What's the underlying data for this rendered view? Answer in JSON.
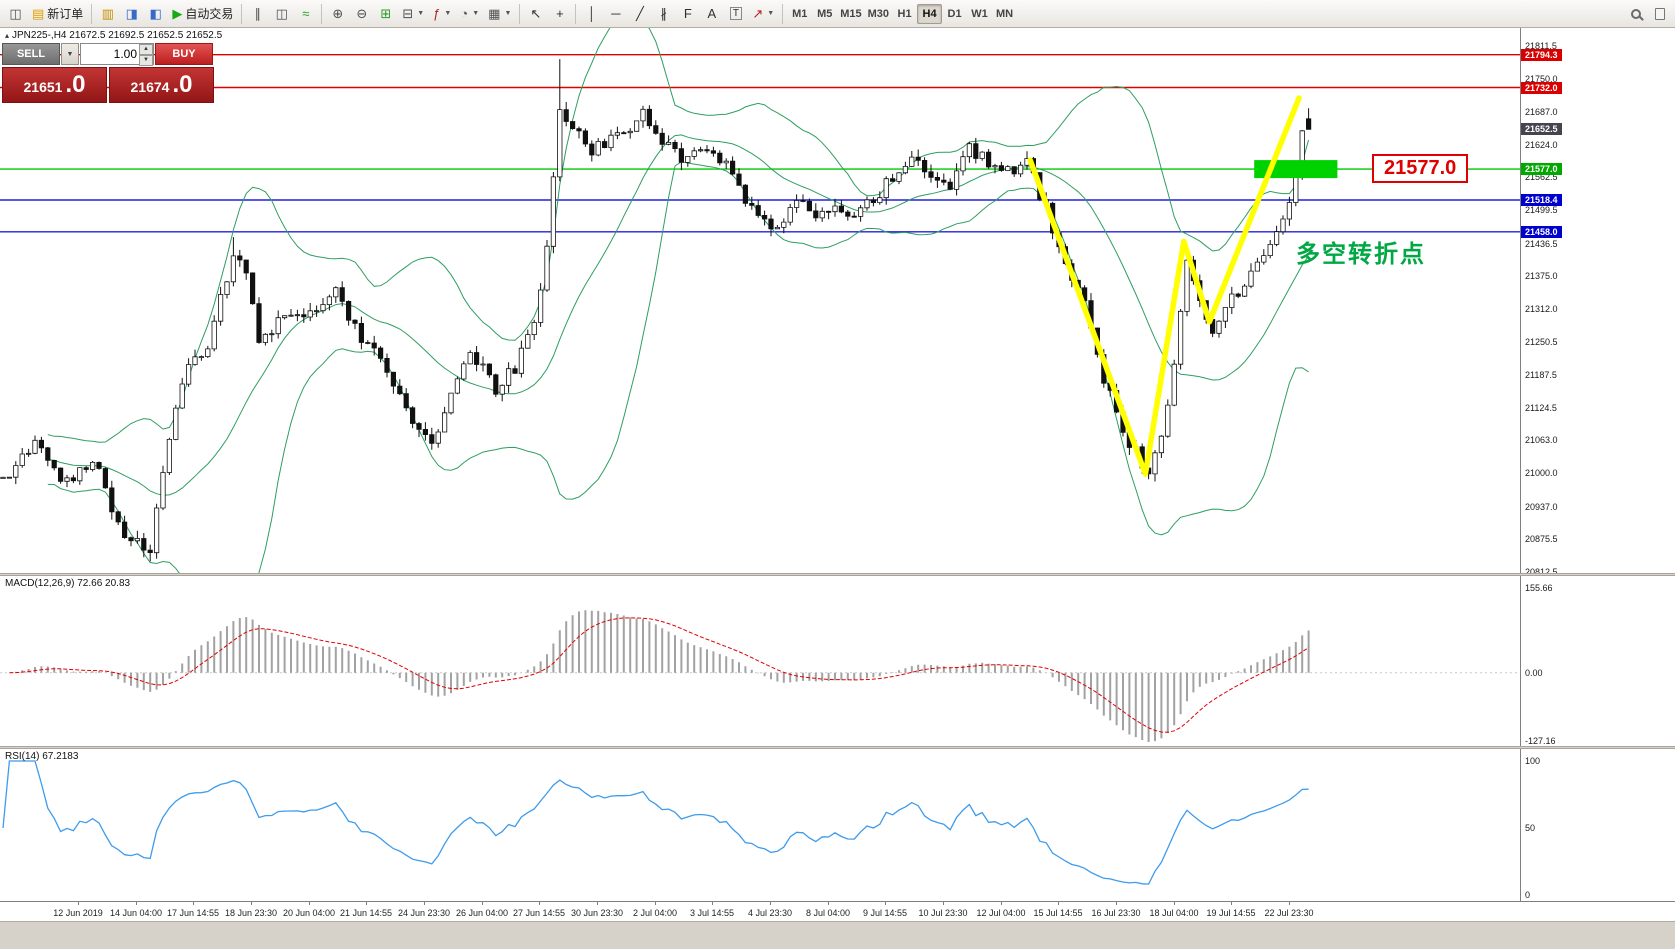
{
  "toolbar": {
    "new_order_label": "新订单",
    "auto_trading_label": "自动交易",
    "timeframes": [
      "M1",
      "M5",
      "M15",
      "M30",
      "H1",
      "H4",
      "D1",
      "W1",
      "MN"
    ],
    "active_timeframe": "H4",
    "items": [
      {
        "t": "icon",
        "n": "new-chart-icon",
        "g": "◫",
        "c": "#505050"
      },
      {
        "t": "text",
        "n": "new-order-button",
        "g": "▤",
        "gc": "#e0a000",
        "label": "新订单"
      },
      {
        "t": "sep"
      },
      {
        "t": "icon",
        "n": "profiles-icon",
        "g": "▥",
        "c": "#c89000"
      },
      {
        "t": "icon",
        "n": "market-watch-icon",
        "g": "◨",
        "c": "#3868c8"
      },
      {
        "t": "icon",
        "n": "navigator-icon",
        "g": "◧",
        "c": "#3868c8"
      },
      {
        "t": "text",
        "n": "auto-trading-button",
        "g": "▶",
        "gc": "#18a818",
        "label": "自动交易"
      },
      {
        "t": "sep"
      },
      {
        "t": "icon",
        "n": "bar-chart-icon",
        "g": "∥",
        "c": "#505050"
      },
      {
        "t": "icon",
        "n": "candlestick-chart-icon",
        "g": "◫",
        "c": "#505050"
      },
      {
        "t": "icon",
        "n": "line-chart-icon",
        "g": "≈",
        "c": "#2a9a2a"
      },
      {
        "t": "sep"
      },
      {
        "t": "icon",
        "n": "zoom-in-icon",
        "g": "⊕",
        "c": "#505050"
      },
      {
        "t": "icon",
        "n": "zoom-out-icon",
        "g": "⊖",
        "c": "#505050"
      },
      {
        "t": "icon",
        "n": "auto-scroll-icon",
        "g": "⊞",
        "c": "#2a9a2a"
      },
      {
        "t": "icon",
        "n": "chart-shift-icon",
        "g": "⊟",
        "c": "#505050",
        "dd": true
      },
      {
        "t": "icon",
        "n": "indicators-icon",
        "g": "ƒ",
        "c": "#b02020",
        "dd": true
      },
      {
        "t": "icon",
        "n": "periods-icon",
        "g": "◔",
        "c": "#505050",
        "dd": true
      },
      {
        "t": "icon",
        "n": "templates-icon",
        "g": "▦",
        "c": "#505050",
        "dd": true
      },
      {
        "t": "sep"
      },
      {
        "t": "icon",
        "n": "cursor-icon",
        "g": "↖",
        "c": "#303030"
      },
      {
        "t": "icon",
        "n": "crosshair-icon",
        "g": "+",
        "c": "#303030"
      },
      {
        "t": "sep"
      },
      {
        "t": "icon",
        "n": "vertical-line-icon",
        "g": "│",
        "c": "#303030"
      },
      {
        "t": "icon",
        "n": "horizontal-line-icon",
        "g": "─",
        "c": "#303030"
      },
      {
        "t": "icon",
        "n": "trendline-icon",
        "g": "╱",
        "c": "#303030"
      },
      {
        "t": "icon",
        "n": "equidistant-channel-icon",
        "g": "∦",
        "c": "#303030"
      },
      {
        "t": "icon",
        "n": "fibonacci-icon",
        "g": "F",
        "c": "#303030"
      },
      {
        "t": "icon",
        "n": "text-icon",
        "g": "A",
        "c": "#303030"
      },
      {
        "t": "icon",
        "n": "text-label-icon",
        "g": "T",
        "c": "#303030",
        "boxed": true
      },
      {
        "t": "icon",
        "n": "arrows-icon",
        "g": "↗",
        "c": "#b02020",
        "dd": true
      },
      {
        "t": "sep"
      },
      {
        "t": "tfgroup"
      },
      {
        "t": "gap"
      },
      {
        "t": "css",
        "n": "search-icon",
        "cls": "icon-magnifier"
      },
      {
        "t": "css",
        "n": "data-window-icon",
        "cls": "icon-page"
      }
    ]
  },
  "chart": {
    "symbol_icon": "▴",
    "symbol_info": "JPN225-,H4  21672.5 21692.5 21652.5 21652.5",
    "trade_panel": {
      "sell_label": "SELL",
      "buy_label": "BUY",
      "volume": "1.00",
      "sell_price_main": "21651",
      "sell_price_big": ".0",
      "buy_price_main": "21674",
      "buy_price_big": ".0"
    },
    "annotation_price": "21577.0",
    "annotation_text": "多空转折点",
    "current_price": "21652.5"
  },
  "price_axis": {
    "plain_labels": [
      "21811.5",
      "21750.0",
      "21687.0",
      "21624.0",
      "21562.5",
      "21499.5",
      "21436.5",
      "21375.0",
      "21312.0",
      "21250.5",
      "21187.5",
      "21124.5",
      "21063.0",
      "21000.0",
      "20937.0",
      "20875.5",
      "20812.5"
    ],
    "tags": [
      {
        "text": "21794.3",
        "price": 21794.3,
        "color": "#d80000"
      },
      {
        "text": "21732.0",
        "price": 21732.0,
        "color": "#d80000"
      },
      {
        "text": "21652.5",
        "price": 21652.5,
        "color": "#45454f"
      },
      {
        "text": "21577.0",
        "price": 21577.0,
        "color": "#00a800"
      },
      {
        "text": "21518.4",
        "price": 21518.4,
        "color": "#0000cd"
      },
      {
        "text": "21458.0",
        "price": 21458.0,
        "color": "#0000cd"
      }
    ]
  },
  "macd": {
    "label": "MACD(12,26,9) 72.66 20.83",
    "scale_top": "155.66",
    "scale_zero": "0.00",
    "scale_bottom": "-127.16"
  },
  "rsi": {
    "label": "RSI(14) 67.2183",
    "scale_top": "100",
    "scale_mid": "50",
    "scale_bottom": "0"
  },
  "time_axis": {
    "labels": [
      "12 Jun 2019",
      "14 Jun 04:00",
      "17 Jun 14:55",
      "18 Jun 23:30",
      "20 Jun 04:00",
      "21 Jun 14:55",
      "24 Jun 23:30",
      "26 Jun 04:00",
      "27 Jun 14:55",
      "30 Jun 23:30",
      "2 Jul 04:00",
      "3 Jul 14:55",
      "4 Jul 23:30",
      "8 Jul 04:00",
      "9 Jul 14:55",
      "10 Jul 23:30",
      "12 Jul 04:00",
      "15 Jul 14:55",
      "16 Jul 23:30",
      "18 Jul 04:00",
      "19 Jul 14:55",
      "22 Jul 23:30"
    ]
  },
  "chart_data": {
    "type": "candlestick",
    "symbol": "JPN225-",
    "timeframe": "H4",
    "ohlc_current": {
      "open": 21672.5,
      "high": 21692.5,
      "low": 21652.5,
      "close": 21652.5
    },
    "bid": "21651.0",
    "ask": "21674.0",
    "y_min": 20800,
    "y_max": 21845,
    "levels": [
      {
        "price": 21794.3,
        "color": "#e00000",
        "style": "solid"
      },
      {
        "price": 21732.0,
        "color": "#e00000",
        "style": "solid"
      },
      {
        "price": 21577.0,
        "color": "#00c800",
        "style": "solid"
      },
      {
        "price": 21518.4,
        "color": "#2020dd",
        "style": "solid"
      },
      {
        "price": 21458.0,
        "color": "#2020dd",
        "style": "solid"
      }
    ],
    "candle_count": 205,
    "price_anchors": [
      [
        0,
        20990
      ],
      [
        5,
        21060
      ],
      [
        10,
        20980
      ],
      [
        14,
        21030
      ],
      [
        18,
        20900
      ],
      [
        23,
        20845
      ],
      [
        25,
        21000
      ],
      [
        28,
        21180
      ],
      [
        32,
        21240
      ],
      [
        36,
        21420
      ],
      [
        38,
        21370
      ],
      [
        40,
        21260
      ],
      [
        44,
        21290
      ],
      [
        48,
        21310
      ],
      [
        52,
        21340
      ],
      [
        56,
        21260
      ],
      [
        60,
        21200
      ],
      [
        64,
        21100
      ],
      [
        67,
        21060
      ],
      [
        70,
        21150
      ],
      [
        73,
        21230
      ],
      [
        77,
        21160
      ],
      [
        80,
        21200
      ],
      [
        83,
        21280
      ],
      [
        85,
        21430
      ],
      [
        87,
        21700
      ],
      [
        89,
        21655
      ],
      [
        92,
        21610
      ],
      [
        95,
        21630
      ],
      [
        98,
        21660
      ],
      [
        100,
        21680
      ],
      [
        103,
        21630
      ],
      [
        106,
        21590
      ],
      [
        109,
        21620
      ],
      [
        112,
        21600
      ],
      [
        115,
        21540
      ],
      [
        118,
        21490
      ],
      [
        121,
        21470
      ],
      [
        124,
        21520
      ],
      [
        127,
        21480
      ],
      [
        130,
        21500
      ],
      [
        133,
        21480
      ],
      [
        136,
        21520
      ],
      [
        139,
        21560
      ],
      [
        142,
        21600
      ],
      [
        145,
        21570
      ],
      [
        148,
        21550
      ],
      [
        151,
        21620
      ],
      [
        154,
        21590
      ],
      [
        157,
        21570
      ],
      [
        160,
        21590
      ],
      [
        163,
        21500
      ],
      [
        166,
        21400
      ],
      [
        169,
        21320
      ],
      [
        172,
        21180
      ],
      [
        175,
        21080
      ],
      [
        178,
        21020
      ],
      [
        179,
        21005
      ],
      [
        181,
        21070
      ],
      [
        183,
        21210
      ],
      [
        185,
        21400
      ],
      [
        187,
        21330
      ],
      [
        189,
        21275
      ],
      [
        191,
        21320
      ],
      [
        194,
        21360
      ],
      [
        197,
        21410
      ],
      [
        200,
        21470
      ],
      [
        202,
        21560
      ],
      [
        203,
        21640
      ],
      [
        204,
        21652.5
      ]
    ],
    "special_candles": {
      "23": {
        "low": 20832
      },
      "36": {
        "high": 21448
      },
      "87": {
        "high": 21786
      },
      "179": {
        "low": 20988
      }
    },
    "yellow_path": [
      [
        160.5,
        21594
      ],
      [
        178.5,
        20998
      ],
      [
        184.5,
        21440
      ],
      [
        188.5,
        21287
      ],
      [
        202.5,
        21712
      ]
    ],
    "highlight_rect": {
      "i0": 195.5,
      "i1": 208.5,
      "price": 21577.0,
      "half_h": 9
    },
    "bollinger": {
      "period": 20,
      "deviation": 2
    },
    "macd_params": [
      12,
      26,
      9
    ],
    "rsi_period": 14
  }
}
